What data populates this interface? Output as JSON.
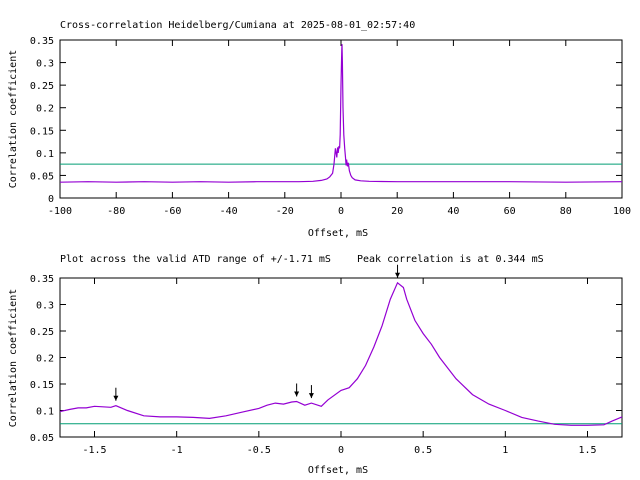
{
  "chart_data": [
    {
      "type": "line",
      "title": "Cross-correlation Heidelberg/Cumiana at 2025-08-01_02:57:40",
      "xlabel": "Offset, mS",
      "ylabel": "Correlation coefficient",
      "xlim": [
        -100,
        100
      ],
      "ylim": [
        0,
        0.35
      ],
      "xticks": [
        -100,
        -80,
        -60,
        -40,
        -20,
        0,
        20,
        40,
        60,
        80,
        100
      ],
      "yticks": [
        0,
        0.05,
        0.1,
        0.15,
        0.2,
        0.25,
        0.3,
        0.35
      ],
      "threshold": 0.075,
      "colors": {
        "series": "#9400d3",
        "threshold": "#009e73"
      },
      "series": [
        {
          "x": [
            -100,
            -90,
            -80,
            -70,
            -60,
            -50,
            -40,
            -30,
            -20,
            -15,
            -10,
            -7,
            -5,
            -4,
            -3,
            -2.5,
            -2,
            -1.5,
            -1.2,
            -1,
            -0.7,
            -0.5,
            -0.3,
            0,
            0.3,
            0.35,
            0.5,
            0.7,
            1,
            1.3,
            1.6,
            1.8,
            2,
            2.3,
            2.6,
            3,
            3.5,
            4,
            5,
            7,
            10,
            20,
            40,
            60,
            80,
            100
          ],
          "y": [
            0.035,
            0.036,
            0.035,
            0.036,
            0.035,
            0.036,
            0.035,
            0.036,
            0.036,
            0.036,
            0.037,
            0.039,
            0.042,
            0.047,
            0.055,
            0.075,
            0.11,
            0.09,
            0.112,
            0.1,
            0.115,
            0.11,
            0.14,
            0.25,
            0.33,
            0.341,
            0.3,
            0.2,
            0.14,
            0.11,
            0.09,
            0.072,
            0.085,
            0.07,
            0.078,
            0.06,
            0.05,
            0.045,
            0.04,
            0.038,
            0.037,
            0.036,
            0.036,
            0.036,
            0.035,
            0.036
          ]
        }
      ]
    },
    {
      "type": "line",
      "title": "Plot across the valid ATD range of +/-1.71 mS",
      "subtitle": "Peak correlation is at 0.344 mS",
      "xlabel": "Offset, mS",
      "ylabel": "Correlation coefficient",
      "xlim": [
        -1.71,
        1.71
      ],
      "ylim": [
        0.05,
        0.35
      ],
      "xticks": [
        -1.5,
        -1,
        -0.5,
        0,
        0.5,
        1,
        1.5
      ],
      "yticks": [
        0.05,
        0.1,
        0.15,
        0.2,
        0.25,
        0.3,
        0.35
      ],
      "threshold": 0.075,
      "markers_x": [
        -1.37,
        -0.27,
        -0.18,
        0.344
      ],
      "colors": {
        "series": "#9400d3",
        "threshold": "#009e73"
      },
      "series": [
        {
          "x": [
            -1.71,
            -1.65,
            -1.6,
            -1.55,
            -1.5,
            -1.45,
            -1.4,
            -1.37,
            -1.3,
            -1.2,
            -1.1,
            -1.0,
            -0.9,
            -0.8,
            -0.7,
            -0.6,
            -0.5,
            -0.45,
            -0.4,
            -0.35,
            -0.3,
            -0.27,
            -0.22,
            -0.18,
            -0.12,
            -0.08,
            0,
            0.05,
            0.1,
            0.15,
            0.2,
            0.25,
            0.3,
            0.344,
            0.38,
            0.4,
            0.45,
            0.5,
            0.55,
            0.6,
            0.7,
            0.8,
            0.9,
            1.0,
            1.1,
            1.2,
            1.3,
            1.4,
            1.5,
            1.6,
            1.65,
            1.71
          ],
          "y": [
            0.098,
            0.102,
            0.105,
            0.105,
            0.108,
            0.107,
            0.106,
            0.109,
            0.1,
            0.09,
            0.088,
            0.088,
            0.087,
            0.085,
            0.09,
            0.097,
            0.104,
            0.11,
            0.114,
            0.112,
            0.116,
            0.117,
            0.11,
            0.114,
            0.108,
            0.12,
            0.138,
            0.143,
            0.16,
            0.185,
            0.22,
            0.26,
            0.31,
            0.341,
            0.332,
            0.31,
            0.27,
            0.245,
            0.225,
            0.2,
            0.16,
            0.13,
            0.112,
            0.1,
            0.087,
            0.08,
            0.074,
            0.072,
            0.072,
            0.073,
            0.08,
            0.088
          ]
        }
      ]
    }
  ]
}
